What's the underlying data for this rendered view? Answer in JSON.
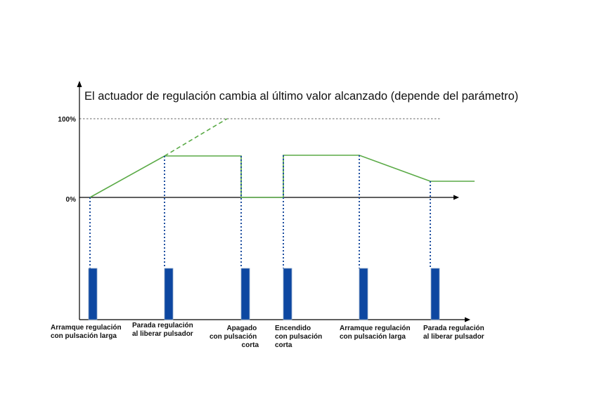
{
  "title": "El actuador de regulación cambia al último valor alcanzado (depende del parámetro)",
  "y_labels": {
    "top": "100%",
    "zero": "0%"
  },
  "captions": [
    {
      "lines": [
        "Arramque regulación",
        "con pulsación larga"
      ],
      "align": "start"
    },
    {
      "lines": [
        "Parada regulación",
        "al liberar pulsador"
      ],
      "align": "start"
    },
    {
      "lines": [
        "Apagado",
        "con pulsación",
        "corta"
      ],
      "align": "end"
    },
    {
      "lines": [
        "Encendido",
        "con pulsación",
        "corta"
      ],
      "align": "start"
    },
    {
      "lines": [
        "Arramque regulación",
        "con pulsación larga"
      ],
      "align": "start"
    },
    {
      "lines": [
        "Parada regulación",
        "al liberar pulsador"
      ],
      "align": "start"
    }
  ],
  "colors": {
    "signal": "#5aaa46",
    "marker": "#1f4fa0",
    "pulse": "#0d47a1",
    "axis": "#000000"
  }
}
